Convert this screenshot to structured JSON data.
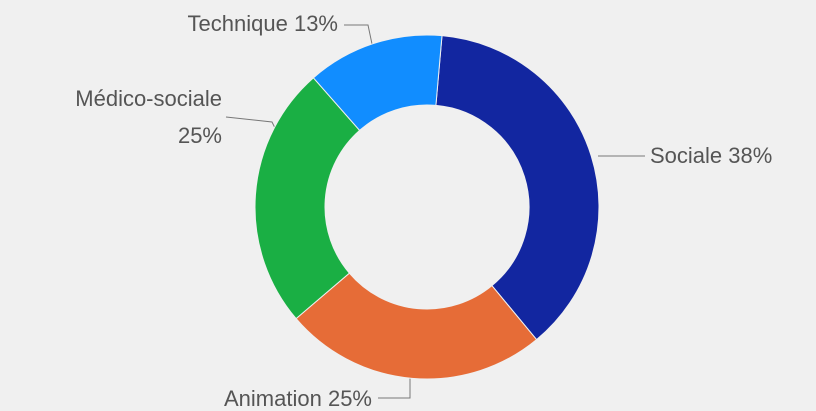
{
  "chart_data": {
    "type": "donut",
    "categories": [
      "Sociale",
      "Animation",
      "Médico-sociale",
      "Technique"
    ],
    "values": [
      38,
      25,
      25,
      13
    ],
    "value_labels": [
      "38%",
      "25%",
      "25%",
      "13%"
    ],
    "colors": [
      "#1226a0",
      "#e66c37",
      "#1aaf44",
      "#118dff"
    ]
  }
}
